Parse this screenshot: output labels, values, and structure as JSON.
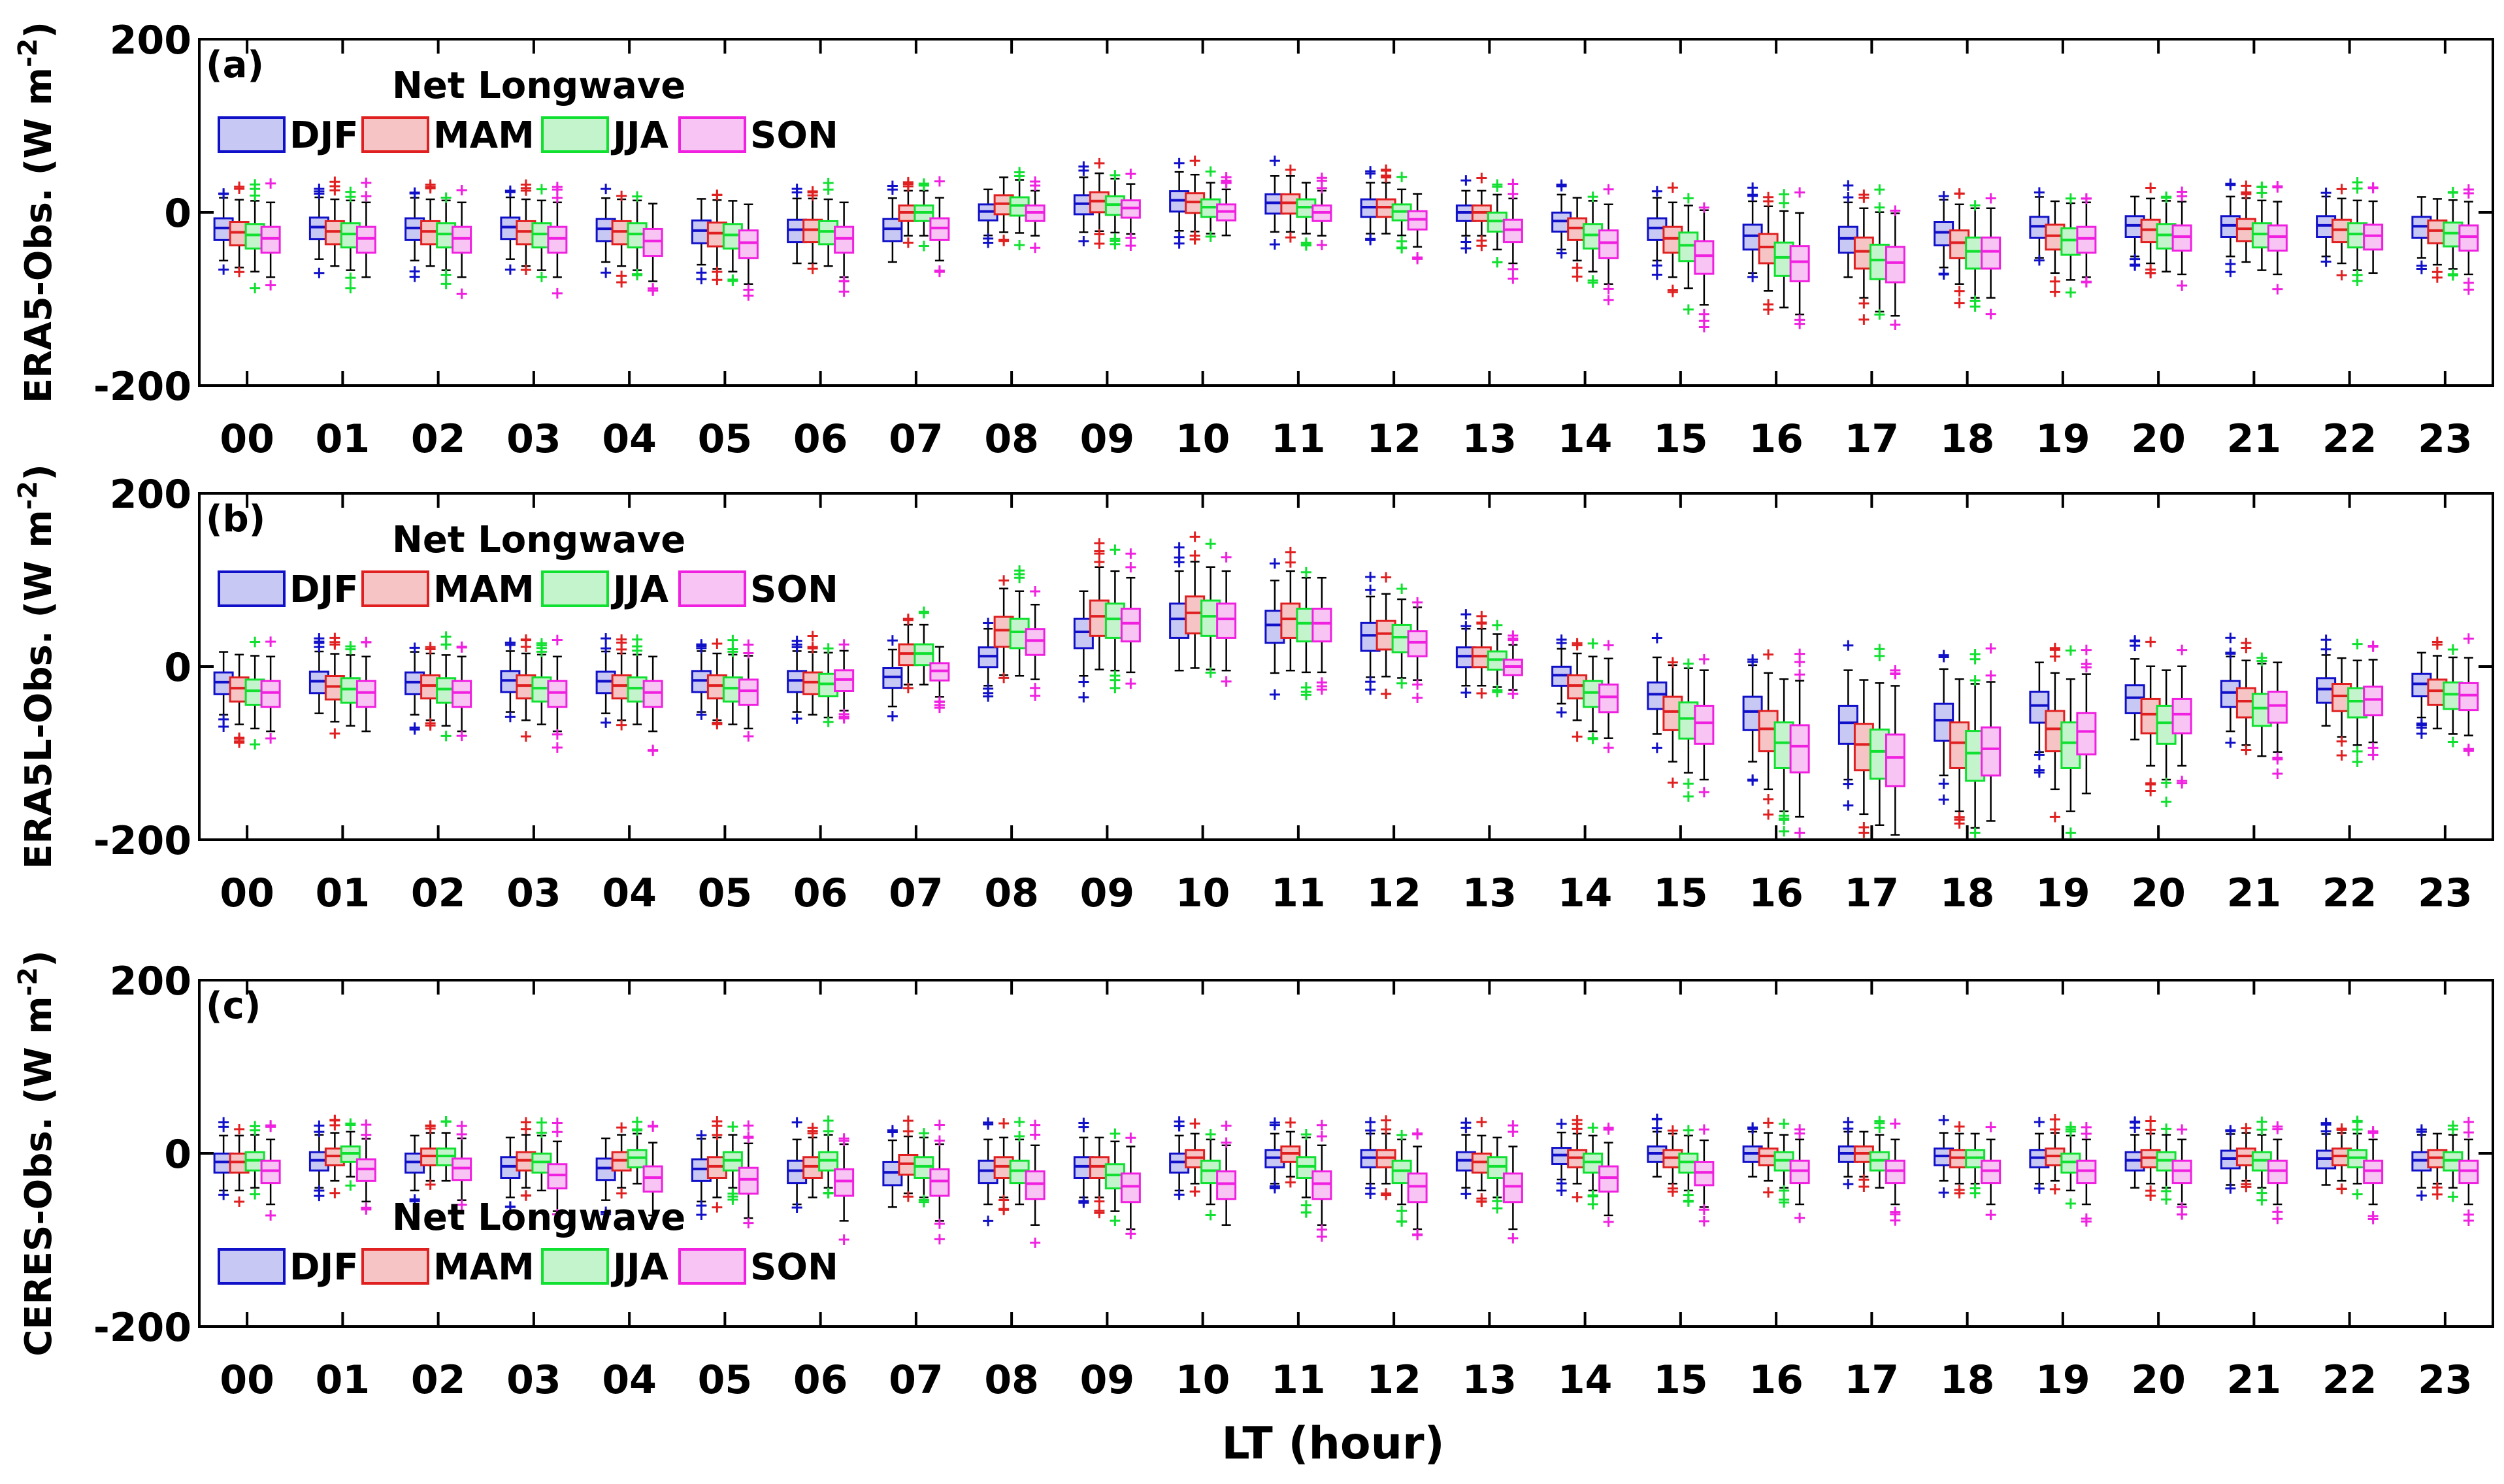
{
  "colors": {
    "DJF": "#1010c8",
    "MAM": "#e02020",
    "JJA": "#10e030",
    "SON": "#f020e0",
    "DJF_fill": "#c8c8f4",
    "MAM_fill": "#f6c4c4",
    "JJA_fill": "#c4f4cc",
    "SON_fill": "#f8c4f4"
  },
  "xlabel": "LT (hour)",
  "chart_data": [
    {
      "type": "box",
      "panel_label": "(a)",
      "legend_title": "Net Longwave",
      "legend_position": "top-left",
      "ylabel_main": "ERA5-Obs. (W m",
      "ylabel_sup": "-2",
      "ylabel_end": ")",
      "ylim": [
        -200,
        200
      ],
      "yticks": [
        "200",
        "0",
        "-200"
      ],
      "categories": [
        "00",
        "01",
        "02",
        "03",
        "04",
        "05",
        "06",
        "07",
        "08",
        "09",
        "10",
        "11",
        "12",
        "13",
        "14",
        "15",
        "16",
        "17",
        "18",
        "19",
        "20",
        "21",
        "22",
        "23"
      ],
      "series": [
        {
          "name": "DJF",
          "medians": [
            -18,
            -17,
            -18,
            -17,
            -19,
            -21,
            -20,
            -19,
            1,
            10,
            14,
            11,
            6,
            0,
            -10,
            -18,
            -27,
            -30,
            -23,
            -16,
            -15,
            -15,
            -15,
            -16
          ]
        },
        {
          "name": "MAM",
          "medians": [
            -23,
            -22,
            -22,
            -22,
            -22,
            -24,
            -20,
            0,
            10,
            13,
            12,
            11,
            6,
            0,
            -18,
            -30,
            -40,
            -45,
            -35,
            -27,
            -20,
            -19,
            -20,
            -21
          ]
        },
        {
          "name": "JJA",
          "medians": [
            -26,
            -25,
            -25,
            -25,
            -25,
            -26,
            -22,
            0,
            8,
            9,
            6,
            6,
            1,
            -10,
            -26,
            -38,
            -52,
            -55,
            -45,
            -32,
            -26,
            -25,
            -25,
            -24
          ]
        },
        {
          "name": "SON",
          "medians": [
            -30,
            -30,
            -30,
            -30,
            -33,
            -35,
            -30,
            -18,
            0,
            5,
            1,
            0,
            -8,
            -20,
            -35,
            -50,
            -57,
            -58,
            -45,
            -30,
            -28,
            -28,
            -27,
            -28
          ]
        }
      ]
    },
    {
      "type": "box",
      "panel_label": "(b)",
      "legend_title": "Net Longwave",
      "legend_position": "top-left",
      "ylabel_main": "ERA5L-Obs. (W m",
      "ylabel_sup": "-2",
      "ylabel_end": ")",
      "ylim": [
        -200,
        200
      ],
      "yticks": [
        "200",
        "0",
        "-200"
      ],
      "categories": [
        "00",
        "01",
        "02",
        "03",
        "04",
        "05",
        "06",
        "07",
        "08",
        "09",
        "10",
        "11",
        "12",
        "13",
        "14",
        "15",
        "16",
        "17",
        "18",
        "19",
        "20",
        "21",
        "22",
        "23"
      ],
      "series": [
        {
          "name": "DJF",
          "medians": [
            -18,
            -17,
            -18,
            -16,
            -17,
            -16,
            -16,
            -12,
            12,
            40,
            55,
            48,
            36,
            12,
            -10,
            -32,
            -52,
            -65,
            -62,
            -45,
            -36,
            -30,
            -26,
            -20
          ]
        },
        {
          "name": "MAM",
          "medians": [
            -25,
            -23,
            -22,
            -22,
            -22,
            -22,
            -18,
            15,
            42,
            58,
            62,
            55,
            38,
            12,
            -22,
            -52,
            -72,
            -90,
            -88,
            -72,
            -55,
            -40,
            -34,
            -28
          ]
        },
        {
          "name": "JJA",
          "medians": [
            -28,
            -26,
            -26,
            -25,
            -25,
            -25,
            -20,
            15,
            40,
            55,
            58,
            50,
            34,
            8,
            -30,
            -60,
            -88,
            -98,
            -100,
            -88,
            -65,
            -48,
            -40,
            -32
          ]
        },
        {
          "name": "SON",
          "medians": [
            -30,
            -30,
            -30,
            -30,
            -30,
            -28,
            -15,
            -5,
            30,
            50,
            55,
            50,
            28,
            0,
            -35,
            -65,
            -92,
            -105,
            -95,
            -75,
            -55,
            -45,
            -38,
            -33
          ]
        }
      ]
    },
    {
      "type": "box",
      "panel_label": "(c)",
      "legend_title": "Net Longwave",
      "legend_position": "bottom-left",
      "ylabel_main": "CERES-Obs. (W m",
      "ylabel_sup": "-2",
      "ylabel_end": ")",
      "ylim": [
        -200,
        200
      ],
      "yticks": [
        "200",
        "0",
        "-200"
      ],
      "categories": [
        "00",
        "01",
        "02",
        "03",
        "04",
        "05",
        "06",
        "07",
        "08",
        "09",
        "10",
        "11",
        "12",
        "13",
        "14",
        "15",
        "16",
        "17",
        "18",
        "19",
        "20",
        "21",
        "22",
        "23"
      ],
      "series": [
        {
          "name": "DJF",
          "medians": [
            -10,
            -8,
            -10,
            -15,
            -17,
            -18,
            -20,
            -22,
            -20,
            -15,
            -10,
            -5,
            -5,
            -8,
            -2,
            0,
            0,
            0,
            -3,
            -5,
            -8,
            -6,
            -6,
            -8
          ]
        },
        {
          "name": "MAM",
          "medians": [
            -10,
            -3,
            -3,
            -8,
            -8,
            -15,
            -15,
            -12,
            -15,
            -15,
            -5,
            0,
            -5,
            -10,
            -5,
            -5,
            -3,
            0,
            -5,
            -3,
            -5,
            -3,
            -3,
            -5
          ]
        },
        {
          "name": "JJA",
          "medians": [
            -8,
            0,
            -3,
            -10,
            -5,
            -8,
            -8,
            -15,
            -20,
            -25,
            -20,
            -15,
            -20,
            -15,
            -10,
            -10,
            -8,
            -8,
            -5,
            -10,
            -8,
            -8,
            -5,
            -8
          ]
        },
        {
          "name": "SON",
          "medians": [
            -20,
            -18,
            -17,
            -25,
            -28,
            -30,
            -32,
            -32,
            -35,
            -38,
            -35,
            -35,
            -38,
            -38,
            -28,
            -22,
            -20,
            -20,
            -20,
            -20,
            -20,
            -20,
            -20,
            -20
          ]
        }
      ]
    }
  ]
}
